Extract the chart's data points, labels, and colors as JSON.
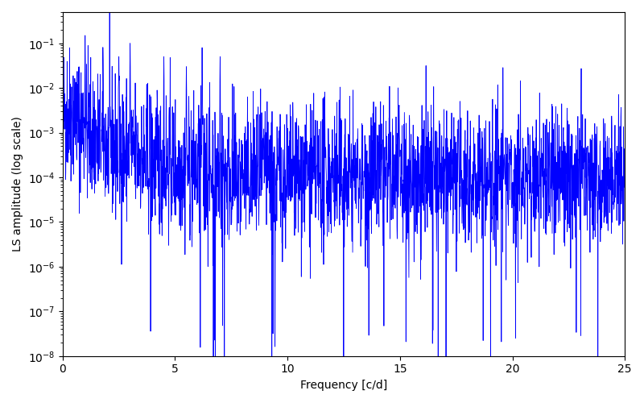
{
  "title": "",
  "xlabel": "Frequency [c/d]",
  "ylabel": "LS amplitude (log scale)",
  "xlim": [
    0,
    25
  ],
  "ylim": [
    1e-08,
    0.5
  ],
  "line_color": "blue",
  "background_color": "#ffffff",
  "figsize": [
    8.0,
    5.0
  ],
  "dpi": 100,
  "num_points": 2500,
  "seed": 42,
  "baseline": 0.0001,
  "noise_sigma": 1.8,
  "power_law_exp": 1.2,
  "extra_deep_nulls": 20,
  "xticks": [
    0,
    5,
    10,
    15,
    20,
    25
  ]
}
